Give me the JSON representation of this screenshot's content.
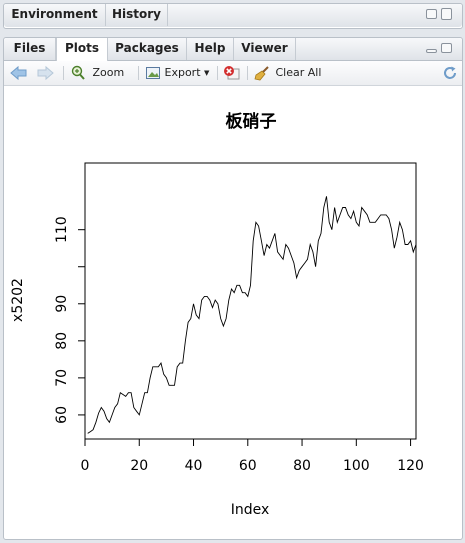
{
  "top_pane": {
    "tabs": [
      "Environment",
      "History"
    ]
  },
  "bottom_pane": {
    "tabs": [
      "Files",
      "Plots",
      "Packages",
      "Help",
      "Viewer"
    ],
    "active_tab": "Plots"
  },
  "toolbar": {
    "zoom": "Zoom",
    "export": "Export",
    "clear_all": "Clear All"
  },
  "chart_data": {
    "type": "line",
    "title": "板硝子",
    "xlabel": "Index",
    "ylabel": "x5202",
    "xlim": [
      0,
      122
    ],
    "ylim": [
      53.5,
      128
    ],
    "xticks": [
      0,
      20,
      40,
      60,
      80,
      100,
      120
    ],
    "yticks": [
      60,
      70,
      80,
      90,
      110
    ],
    "grid": false,
    "x_start": 1,
    "values": [
      55,
      55.5,
      56,
      58,
      60.5,
      62,
      61,
      59,
      58,
      60,
      62,
      63,
      66,
      65.5,
      65,
      66,
      66,
      62,
      61,
      60,
      63,
      66,
      66,
      70,
      73,
      73,
      73,
      74,
      71,
      70,
      68,
      68,
      68,
      73,
      74,
      74,
      80,
      85,
      86,
      90,
      87,
      86,
      91,
      92,
      92,
      91,
      89,
      91,
      90,
      86,
      84,
      86,
      91,
      94,
      93,
      95,
      95,
      93,
      93,
      92,
      95,
      107,
      112,
      111,
      107,
      103,
      106,
      105,
      107,
      109,
      104,
      103,
      102,
      106,
      105,
      103,
      101,
      97,
      99,
      100,
      101,
      102,
      106,
      104,
      100,
      107,
      109,
      116,
      119,
      112,
      110,
      116,
      112,
      114,
      116,
      116,
      114,
      113,
      115,
      112,
      111,
      116,
      115,
      114,
      112,
      112,
      112,
      113,
      114,
      114,
      114,
      113,
      110,
      105,
      108,
      112,
      110,
      106,
      106,
      107,
      104,
      106
    ]
  }
}
